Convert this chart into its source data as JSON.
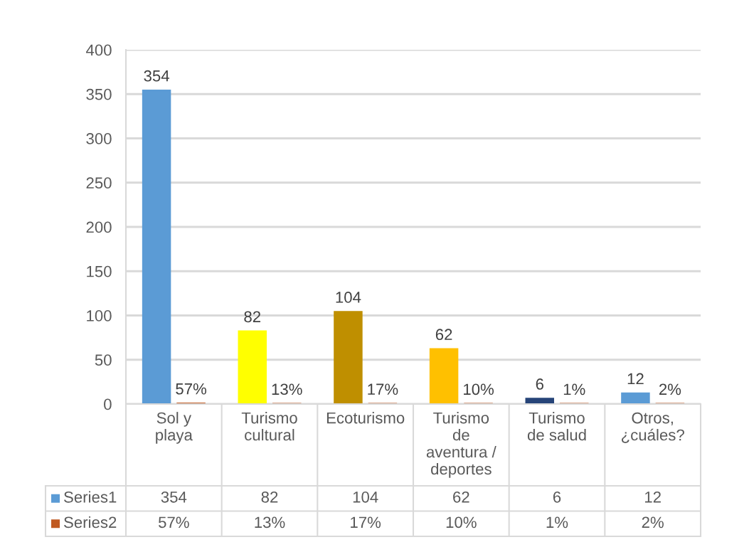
{
  "chart_data": {
    "type": "bar",
    "categories": [
      "Sol y playa",
      "Turismo cultural",
      "Ecoturismo",
      "Turismo de aventura / deportes",
      "Turismo de salud",
      "Otros, ¿cuáles?"
    ],
    "series": [
      {
        "name": "Series1",
        "color": "#5b9bd5",
        "colors": [
          "#5b9bd5",
          "#ffff00",
          "#bf8f00",
          "#ffc000",
          "#264478",
          "#5b9bd5"
        ],
        "values": [
          354,
          82,
          104,
          62,
          6,
          12
        ],
        "value_labels": [
          "354",
          "82",
          "104",
          "62",
          "6",
          "12"
        ]
      },
      {
        "name": "Series2",
        "color": "#c05a22",
        "values": [
          0.57,
          0.13,
          0.17,
          0.1,
          0.01,
          0.02
        ],
        "value_labels": [
          "57%",
          "13%",
          "17%",
          "10%",
          "1%",
          "2%"
        ]
      }
    ],
    "ylim": [
      0,
      400
    ],
    "yticks": [
      0,
      50,
      100,
      150,
      200,
      250,
      300,
      350,
      400
    ],
    "grid": "y",
    "legend": "bottom"
  }
}
